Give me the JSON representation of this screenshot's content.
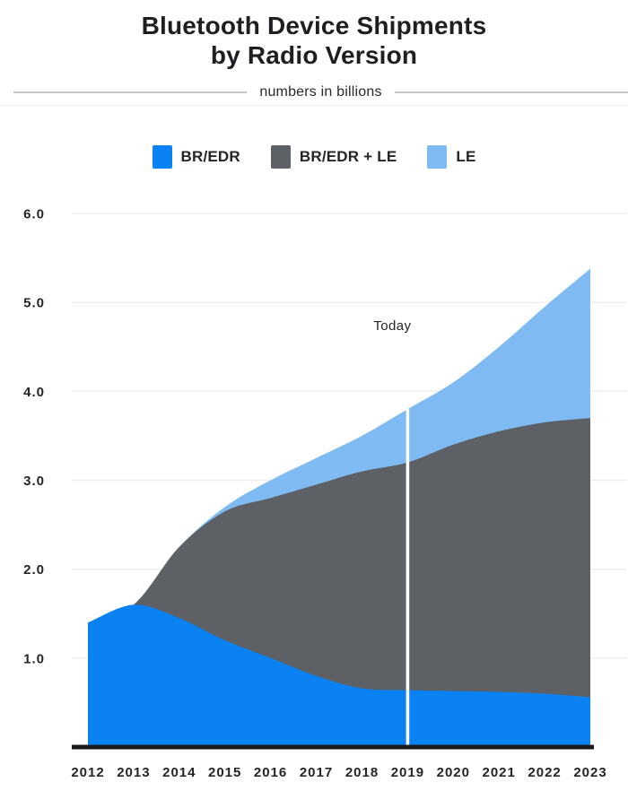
{
  "title": {
    "line1": "Bluetooth Device Shipments",
    "line2": "by Radio Version"
  },
  "subtitle": "numbers in billions",
  "legend": [
    {
      "label": "BR/EDR",
      "color": "#0a82f2"
    },
    {
      "label": "BR/EDR + LE",
      "color": "#5d6064"
    },
    {
      "label": "LE",
      "color": "#7fbaf3"
    }
  ],
  "annotation": {
    "label": "Today",
    "year": "2019"
  },
  "chart_data": {
    "type": "area",
    "stacked": true,
    "title": "Bluetooth Device Shipments by Radio Version",
    "subtitle": "numbers in billions",
    "units": "billions",
    "x": [
      "2012",
      "2013",
      "2014",
      "2015",
      "2016",
      "2017",
      "2018",
      "2019",
      "2020",
      "2021",
      "2022",
      "2023"
    ],
    "series": [
      {
        "name": "BR/EDR",
        "color": "#0a82f2",
        "values": [
          1.4,
          1.6,
          1.45,
          1.2,
          1.0,
          0.8,
          0.66,
          0.64,
          0.63,
          0.62,
          0.6,
          0.56
        ]
      },
      {
        "name": "BR/EDR + LE",
        "color": "#5d6064",
        "values": [
          0,
          0,
          0.8,
          1.45,
          1.8,
          2.15,
          2.44,
          2.56,
          2.77,
          2.93,
          3.05,
          3.14
        ]
      },
      {
        "name": "LE",
        "color": "#7fbaf3",
        "values": [
          0,
          0,
          0,
          0.05,
          0.2,
          0.3,
          0.4,
          0.6,
          0.7,
          0.95,
          1.3,
          1.68
        ]
      }
    ],
    "stack_totals": [
      1.4,
      1.6,
      2.25,
      2.7,
      3.0,
      3.25,
      3.5,
      3.8,
      4.1,
      4.5,
      4.95,
      5.38
    ],
    "y_ticks": [
      1.0,
      2.0,
      3.0,
      4.0,
      5.0,
      6.0
    ],
    "ylim": [
      0,
      6.2
    ],
    "grid": true,
    "legend_position": "top",
    "annotation": {
      "label": "Today",
      "x": "2019"
    }
  },
  "colors": {
    "background": "#ffffff",
    "title_text": "#1d1f22",
    "axis_text": "#232527",
    "gridline": "#f0eded",
    "axis_line": "#191a1c",
    "today_line": "#ffffff",
    "subtitle_rule": "#c7c7c7"
  }
}
